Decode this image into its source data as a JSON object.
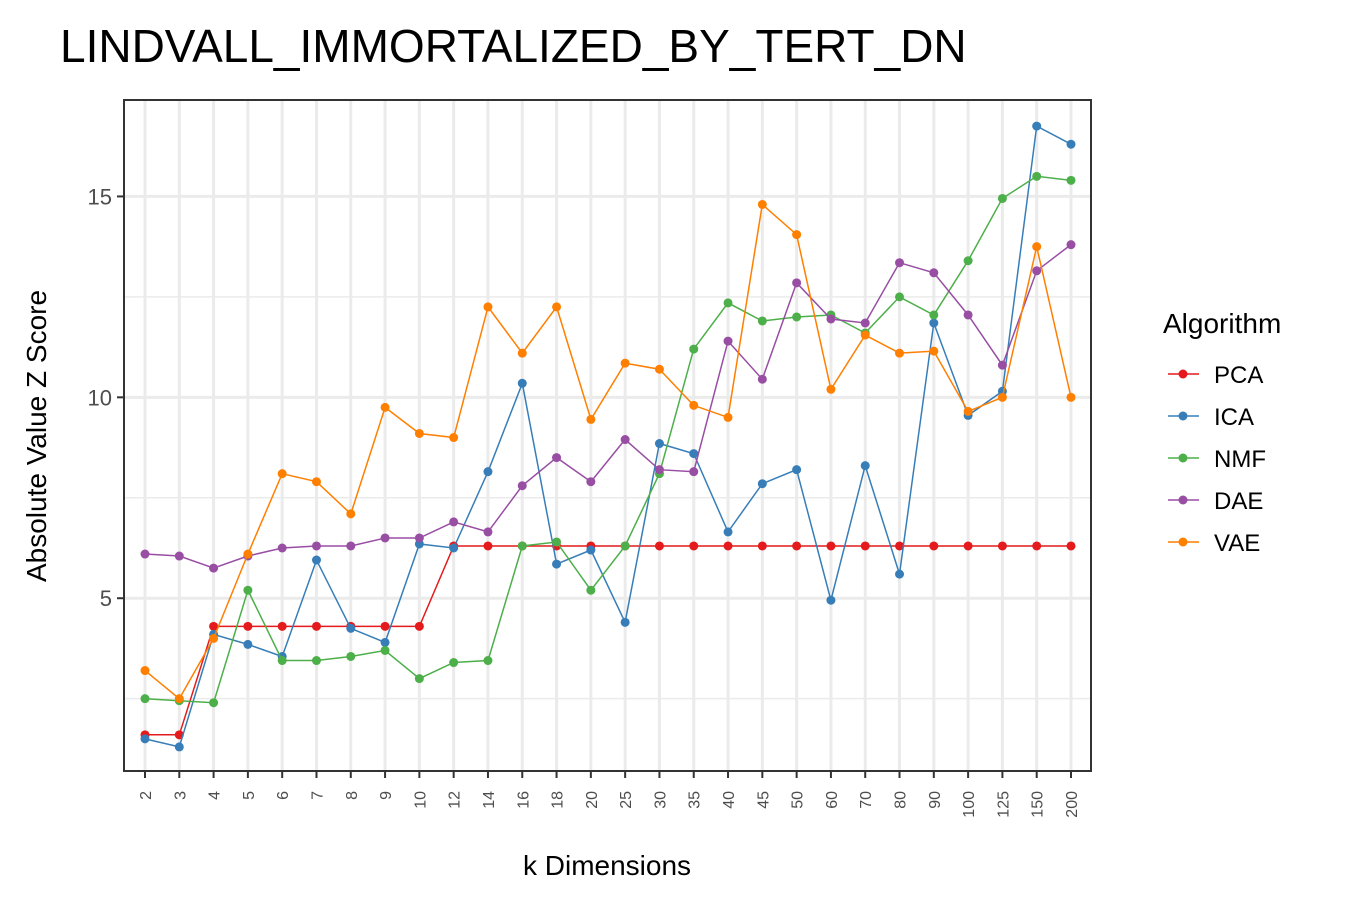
{
  "chart_data": {
    "type": "line",
    "title": "LINDVALL_IMMORTALIZED_BY_TERT_DN",
    "xlabel": "k Dimensions",
    "ylabel": "Absolute Value Z Score",
    "x": [
      "2",
      "3",
      "4",
      "5",
      "6",
      "7",
      "8",
      "9",
      "10",
      "12",
      "14",
      "16",
      "18",
      "20",
      "25",
      "30",
      "35",
      "40",
      "45",
      "50",
      "60",
      "70",
      "80",
      "90",
      "100",
      "125",
      "150",
      "200"
    ],
    "yticks": [
      5,
      10,
      15
    ],
    "ylim": [
      0.7,
      17.4
    ],
    "grid": true,
    "legend": {
      "title": "Algorithm",
      "position": "right"
    },
    "series": [
      {
        "name": "PCA",
        "color": "#E41A1C",
        "values": [
          1.6,
          1.6,
          4.3,
          4.3,
          4.3,
          4.3,
          4.3,
          4.3,
          4.3,
          6.3,
          6.3,
          6.3,
          6.3,
          6.3,
          6.3,
          6.3,
          6.3,
          6.3,
          6.3,
          6.3,
          6.3,
          6.3,
          6.3,
          6.3,
          6.3,
          6.3,
          6.3,
          6.3
        ]
      },
      {
        "name": "ICA",
        "color": "#377EB8",
        "values": [
          1.5,
          1.3,
          4.1,
          3.85,
          3.55,
          5.95,
          4.25,
          3.9,
          6.35,
          6.25,
          8.15,
          10.35,
          5.85,
          6.2,
          4.4,
          8.85,
          8.6,
          6.65,
          7.85,
          8.2,
          4.95,
          8.3,
          5.6,
          11.85,
          9.55,
          10.15,
          16.75,
          16.3
        ]
      },
      {
        "name": "NMF",
        "color": "#4DAF4A",
        "values": [
          2.5,
          2.45,
          2.4,
          5.2,
          3.45,
          3.45,
          3.55,
          3.7,
          3.0,
          3.4,
          3.45,
          6.3,
          6.4,
          5.2,
          6.3,
          8.1,
          11.2,
          12.35,
          11.9,
          12.0,
          12.05,
          11.6,
          12.5,
          12.05,
          13.4,
          14.95,
          15.5,
          15.4
        ]
      },
      {
        "name": "DAE",
        "color": "#984EA3",
        "values": [
          6.1,
          6.05,
          5.75,
          6.05,
          6.25,
          6.3,
          6.3,
          6.5,
          6.5,
          6.9,
          6.65,
          7.8,
          8.5,
          7.9,
          8.95,
          8.2,
          8.15,
          11.4,
          10.45,
          12.85,
          11.95,
          11.85,
          13.35,
          13.1,
          12.05,
          10.8,
          13.15,
          13.8
        ]
      },
      {
        "name": "VAE",
        "color": "#FF7F00",
        "values": [
          3.2,
          2.5,
          4.0,
          6.1,
          8.1,
          7.9,
          7.1,
          9.75,
          9.1,
          9.0,
          12.25,
          11.1,
          12.25,
          9.45,
          10.85,
          10.7,
          9.8,
          9.5,
          14.8,
          14.05,
          10.2,
          11.55,
          11.1,
          11.15,
          9.65,
          10.0,
          13.75,
          10.0
        ]
      }
    ]
  }
}
